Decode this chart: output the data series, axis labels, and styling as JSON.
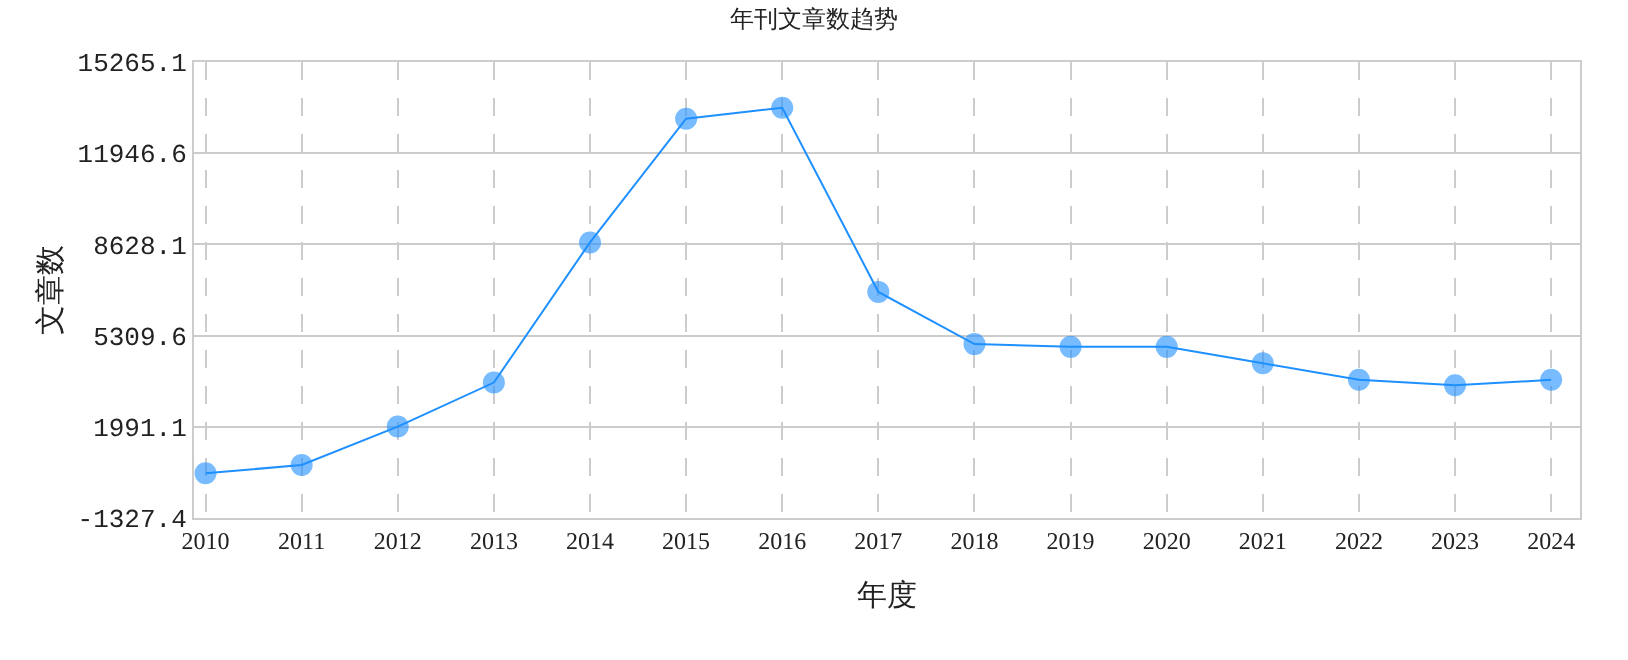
{
  "chart_data": {
    "type": "line",
    "title": "年刊文章数趋势",
    "xlabel": "年度",
    "ylabel": "文章数",
    "categories": [
      "2010",
      "2011",
      "2012",
      "2013",
      "2014",
      "2015",
      "2016",
      "2017",
      "2018",
      "2019",
      "2020",
      "2021",
      "2022",
      "2023",
      "2024"
    ],
    "series": [
      {
        "color": "#1e90ff",
        "values": [
          300,
          600,
          2000,
          3600,
          8700,
          13200,
          13600,
          6900,
          5000,
          4900,
          4900,
          4300,
          3700,
          3500,
          3700
        ]
      }
    ],
    "ylim": [
      -1327.4,
      15265.1
    ],
    "yticks": [
      {
        "value": -1327.4,
        "label": "-1327.4"
      },
      {
        "value": 1991.1,
        "label": "1991.1"
      },
      {
        "value": 5309.6,
        "label": "5309.6"
      },
      {
        "value": 8628.1,
        "label": "8628.1"
      },
      {
        "value": 11946.6,
        "label": "11946.6"
      },
      {
        "value": 15265.1,
        "label": "15265.1"
      }
    ],
    "grid": true,
    "marker": "circle",
    "line_style": "solid"
  }
}
